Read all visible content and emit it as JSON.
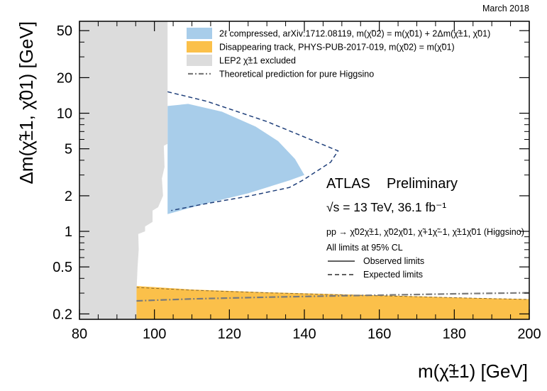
{
  "chart_data": {
    "type": "area",
    "date_label": "March 2018",
    "xlabel": "m(χ̃±1) [GeV]",
    "ylabel": "Δm(χ̃±1, χ̃01) [GeV]",
    "xlim": [
      80,
      200
    ],
    "ylim": [
      0.18,
      60
    ],
    "y_scale": "log",
    "x_ticks": [
      80,
      100,
      120,
      140,
      160,
      180,
      200
    ],
    "y_ticks": [
      0.2,
      0.5,
      1,
      2,
      5,
      10,
      20,
      50
    ],
    "y_tick_labels": [
      "0.2",
      "0.5",
      "1",
      "2",
      "5",
      "10",
      "20",
      "50"
    ],
    "colors": {
      "compressed_fill": "#a8cdea",
      "disappearing_fill": "#fbc04a",
      "lep2_fill": "#dcdcdc",
      "expected_line": "#1f3f7a",
      "higgsino_line": "#7a7a7a"
    },
    "legend": [
      {
        "kind": "blue",
        "label": "2ℓ compressed, arXiv:1712.08119, m(χ̃02) = m(χ̃01) + 2Δm(χ̃±1, χ̃01)"
      },
      {
        "kind": "orange",
        "label": "Disappearing track, PHYS-PUB-2017-019, m(χ̃02) = m(χ̃01)"
      },
      {
        "kind": "grey",
        "label": "LEP2 χ̃±1 excluded"
      },
      {
        "kind": "dashdot",
        "label": "Theoretical prediction for pure Higgsino"
      }
    ],
    "atlas_label": "ATLAS",
    "preliminary_label": "Preliminary",
    "energy_label": "√s = 13 TeV, 36.1 fb⁻¹",
    "process_label": "pp → χ̃02χ̃±1, χ̃02χ̃01, χ̃+1χ̃−1, χ̃±1χ̃01 (Higgsino)",
    "cl_label": "All limits at 95% CL",
    "observed_label": "Observed limits",
    "expected_label": "Expected limits",
    "series": [
      {
        "key": "lep2",
        "points": [
          [
            80,
            0.18
          ],
          [
            80,
            60
          ],
          [
            103.5,
            60
          ],
          [
            103.5,
            5.5
          ],
          [
            102.5,
            5.3
          ],
          [
            102.7,
            3.5
          ],
          [
            102,
            2.8
          ],
          [
            102.3,
            2.0
          ],
          [
            101,
            1.6
          ],
          [
            99.5,
            1.5
          ],
          [
            99.5,
            1.2
          ],
          [
            97.5,
            1.1
          ],
          [
            97.5,
            1.0
          ],
          [
            95.7,
            0.95
          ],
          [
            95.8,
            0.7
          ],
          [
            95.5,
            0.5
          ],
          [
            95.2,
            0.3
          ],
          [
            95.2,
            0.18
          ]
        ]
      },
      {
        "key": "compressed_observed",
        "points": [
          [
            103.5,
            11.5
          ],
          [
            109,
            12
          ],
          [
            118,
            10.3
          ],
          [
            127,
            7.7
          ],
          [
            133,
            5.8
          ],
          [
            137.5,
            4.1
          ],
          [
            140,
            3.0
          ],
          [
            136,
            2.7
          ],
          [
            125,
            2.1
          ],
          [
            113,
            1.7
          ],
          [
            103.5,
            1.4
          ],
          [
            103.5,
            11.5
          ]
        ]
      },
      {
        "key": "compressed_expected",
        "points": [
          [
            103.5,
            15.2
          ],
          [
            114,
            12.6
          ],
          [
            130,
            8.5
          ],
          [
            149,
            4.8
          ],
          [
            147,
            3.85
          ],
          [
            139.5,
            2.7
          ],
          [
            136,
            2.35
          ],
          [
            125,
            1.98
          ],
          [
            113,
            1.7
          ],
          [
            104.5,
            1.5
          ]
        ]
      },
      {
        "key": "disappearing_observed",
        "points": [
          [
            95.2,
            0.345
          ],
          [
            110,
            0.322
          ],
          [
            130,
            0.305
          ],
          [
            150,
            0.293
          ],
          [
            170,
            0.282
          ],
          [
            185,
            0.273
          ],
          [
            200,
            0.267
          ]
        ]
      },
      {
        "key": "disappearing_expected",
        "points": [
          [
            95.2,
            0.335
          ],
          [
            110,
            0.318
          ],
          [
            130,
            0.302
          ],
          [
            150,
            0.29
          ],
          [
            170,
            0.28
          ],
          [
            185,
            0.272
          ],
          [
            200,
            0.265
          ]
        ]
      },
      {
        "key": "higgsino",
        "points": [
          [
            95.2,
            0.258
          ],
          [
            110,
            0.268
          ],
          [
            130,
            0.277
          ],
          [
            150,
            0.285
          ],
          [
            170,
            0.292
          ],
          [
            185,
            0.298
          ],
          [
            200,
            0.302
          ]
        ]
      }
    ]
  }
}
